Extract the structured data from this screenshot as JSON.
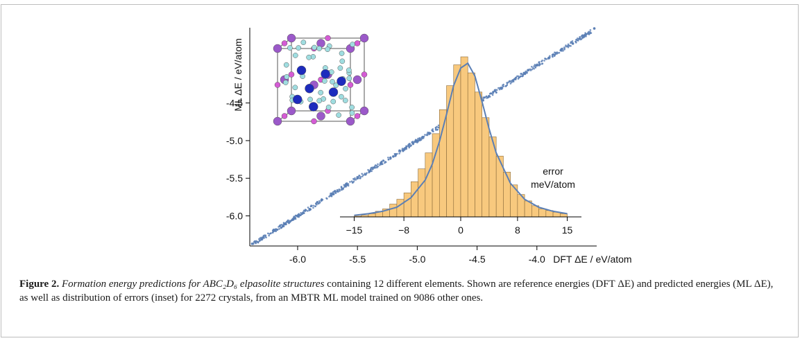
{
  "caption": {
    "label": "Figure 2.",
    "italic_text": "Formation energy predictions for ABC₂D₆ elpasolite structures",
    "text": " containing 12 different elements. Shown are reference energies (DFT ΔE) and predicted energies (ML ΔE), as well as distribution of errors (inset) for 2272 crystals, from an MBTR ML model trained on 9086 other ones."
  },
  "chart_data": [
    {
      "type": "scatter",
      "xlabel": "DFT ΔE / eV/atom",
      "ylabel": "ML ΔE / eV/atom",
      "x_ticks": [
        -6.0,
        -5.5,
        -5.0,
        -4.5,
        -4.0
      ],
      "y_ticks": [
        -6.0,
        -5.5,
        -5.0,
        -4.5
      ],
      "x_tick_labels": [
        "-6.0",
        "-5.5",
        "-5.0",
        "-4.5",
        "-4.0"
      ],
      "y_tick_labels": [
        "-6.0",
        "-5.5",
        "-5.0",
        "-4.5"
      ],
      "xlim": [
        -6.4,
        -3.5
      ],
      "ylim": [
        -6.4,
        -3.5
      ],
      "grid": false,
      "marker_color": "#5b7fb5",
      "series": [
        {
          "x": [
            -6.38,
            -6.3,
            -6.2,
            -6.1,
            -6.0,
            -5.9,
            -5.8,
            -5.7,
            -5.6,
            -5.5,
            -5.4,
            -5.3,
            -5.2,
            -5.1,
            -5.0,
            -4.9,
            -4.8,
            -4.7,
            -4.6,
            -4.5,
            -4.4,
            -4.3,
            -4.2,
            -4.1,
            -4.0,
            -3.9,
            -3.8,
            -3.7,
            -3.6,
            -3.52
          ],
          "y": [
            -6.37,
            -6.31,
            -6.2,
            -6.11,
            -6.0,
            -5.91,
            -5.79,
            -5.71,
            -5.6,
            -5.5,
            -5.41,
            -5.29,
            -5.21,
            -5.1,
            -5.0,
            -4.9,
            -4.81,
            -4.69,
            -4.6,
            -4.5,
            -4.41,
            -4.3,
            -4.2,
            -4.11,
            -4.0,
            -3.9,
            -3.8,
            -3.71,
            -3.6,
            -3.51
          ]
        }
      ]
    },
    {
      "type": "bar",
      "subtype": "histogram",
      "xlabel": "error meV/atom",
      "xlabel_line1": "error",
      "xlabel_line2": "meV/atom",
      "x_ticks": [
        -15,
        -8,
        0,
        8,
        15
      ],
      "x_tick_labels": [
        "−15",
        "−8",
        "0",
        "8",
        "15"
      ],
      "xlim": [
        -17,
        17
      ],
      "bin_width": 1,
      "bin_centers": [
        -14.5,
        -13.5,
        -12.5,
        -11.5,
        -10.5,
        -9.5,
        -8.5,
        -7.5,
        -6.5,
        -5.5,
        -4.5,
        -3.5,
        -2.5,
        -1.5,
        -0.5,
        0.5,
        1.5,
        2.5,
        3.5,
        4.5,
        5.5,
        6.5,
        7.5,
        8.5,
        9.5,
        10.5,
        11.5,
        12.5,
        13.5,
        14.5
      ],
      "values": [
        0.5,
        1.0,
        2.0,
        3.5,
        5.0,
        8.0,
        11.0,
        15.0,
        22.0,
        30.0,
        40.0,
        52.0,
        67.0,
        82.0,
        95.0,
        100.0,
        90.0,
        78.0,
        62.0,
        50.0,
        38.0,
        28.0,
        20.0,
        14.0,
        10.0,
        7.0,
        5.0,
        4.0,
        3.0,
        2.0
      ],
      "bar_color": "#f8c97e",
      "bar_edge_color": "#8a6a3a",
      "fit_curve": {
        "x": [
          -15,
          -13,
          -11,
          -9,
          -7,
          -5,
          -4,
          -3,
          -2,
          -1,
          0,
          1,
          2,
          3,
          4,
          5,
          7,
          9,
          11,
          13,
          15
        ],
        "y": [
          1.0,
          2.0,
          3.5,
          6.0,
          12.0,
          23.0,
          33.0,
          47.0,
          64.0,
          82.0,
          93.0,
          96.0,
          88.0,
          72.0,
          55.0,
          40.0,
          21.0,
          11.0,
          6.0,
          3.5,
          2.0
        ],
        "color": "#5b7fb5"
      }
    }
  ]
}
